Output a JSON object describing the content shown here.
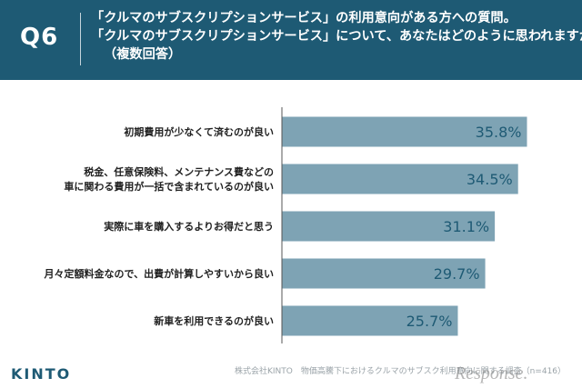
{
  "header": {
    "qnum": "Q6",
    "lines": [
      "「クルマのサブスクリプションサービス」の利用意向がある方への質問。",
      "「クルマのサブスクリプションサービス」について、あなたはどのように思われますか。",
      "（複数回答）"
    ]
  },
  "chart_data": {
    "type": "bar",
    "orientation": "horizontal",
    "categories": [
      [
        "初期費用が少なくて済むのが良い"
      ],
      [
        "税金、任意保険料、メンテナンス費などの",
        "車に関わる費用が一括で含まれているのが良い"
      ],
      [
        "実際に車を購入するよりお得だと思う"
      ],
      [
        "月々定額料金なので、出費が計算しやすいから良い"
      ],
      [
        "新車を利用できるのが良い"
      ]
    ],
    "values": [
      35.8,
      34.5,
      31.1,
      29.7,
      25.7
    ],
    "value_labels": [
      "35.8%",
      "34.5%",
      "31.1%",
      "29.7%",
      "25.7%"
    ],
    "xlim": [
      0,
      36
    ],
    "grid": false,
    "colors": {
      "bar": "#7ea3b4",
      "label": "#1e5a74",
      "category_text": "#222222",
      "axis": "#555555"
    }
  },
  "footer": {
    "logo": "KINTO",
    "source": "株式会社KINTO　物価高騰下におけるクルマのサブスク利用意向に関する調査（n=416）"
  },
  "watermark": "Response."
}
